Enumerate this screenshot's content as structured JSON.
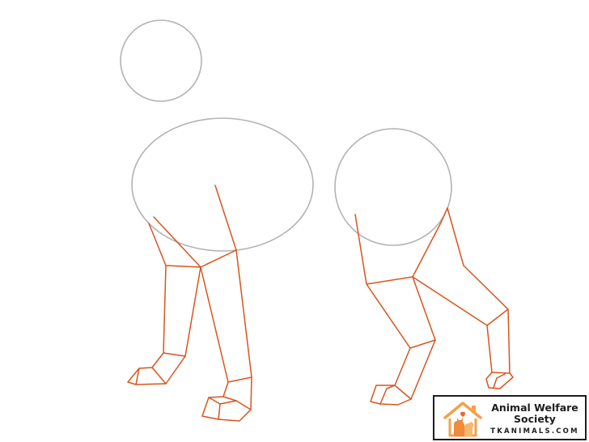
{
  "drawing": {
    "step": "leg-guidelines",
    "guide_color": "#b3b3b3",
    "leg_color": "#d9541e",
    "guides": [
      "head-circle",
      "chest-oval",
      "hip-circle"
    ],
    "legs": [
      "front-left-leg",
      "front-right-leg",
      "hind-left-leg",
      "hind-right-leg"
    ]
  },
  "watermark": {
    "title_line1": "Animal Welfare",
    "title_line2": "Society",
    "url": "TKANIMALS.COM",
    "icon": "house-cat-dog-icon",
    "accent_color": "#f5a04a"
  }
}
